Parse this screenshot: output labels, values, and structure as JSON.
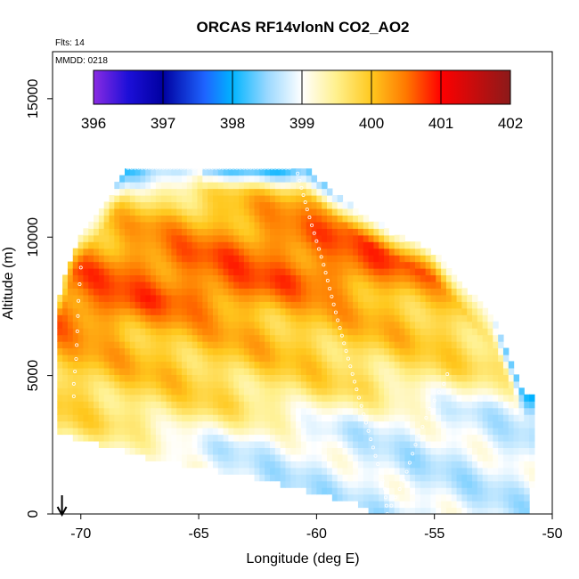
{
  "chart_data": {
    "type": "heatmap",
    "title": "ORCAS RF14vlonN CO2_AO2",
    "annotations": {
      "flights": "Flts: 14",
      "date": "MMDD: 0218"
    },
    "xlabel": "Longitude (deg E)",
    "ylabel": "Altitude (m)",
    "xlim": [
      -71.2,
      -50.0
    ],
    "ylim": [
      0,
      16700
    ],
    "xticks": [
      -70,
      -65,
      -60,
      -55,
      -50
    ],
    "xtick_labels": [
      "-70",
      "-65",
      "-60",
      "-55",
      "-50"
    ],
    "yticks": [
      0,
      5000,
      10000,
      15000
    ],
    "ytick_labels": [
      "0",
      "5000",
      "10000",
      "15000"
    ],
    "colorbar": {
      "min": 396,
      "max": 402,
      "ticks": [
        396,
        397,
        398,
        399,
        400,
        401,
        402
      ],
      "tick_labels": [
        "396",
        "397",
        "398",
        "399",
        "400",
        "401",
        "402"
      ],
      "colors": [
        {
          "v": 396.0,
          "c": "#8a2be2"
        },
        {
          "v": 396.5,
          "c": "#1c0fd8"
        },
        {
          "v": 397.0,
          "c": "#0000a0"
        },
        {
          "v": 397.6,
          "c": "#1e64ff"
        },
        {
          "v": 398.0,
          "c": "#00b4ff"
        },
        {
          "v": 398.5,
          "c": "#9ad8ff"
        },
        {
          "v": 399.0,
          "c": "#ffffff"
        },
        {
          "v": 399.5,
          "c": "#fff08c"
        },
        {
          "v": 400.0,
          "c": "#ffc81e"
        },
        {
          "v": 400.5,
          "c": "#ff7800"
        },
        {
          "v": 401.0,
          "c": "#ff0000"
        },
        {
          "v": 402.0,
          "c": "#8b1a1a"
        }
      ]
    },
    "domain": {
      "top_edge": [
        [
          -68.0,
          12500
        ],
        [
          -60.5,
          12500
        ],
        [
          -58.0,
          10800
        ],
        [
          -55.0,
          9400
        ],
        [
          -52.5,
          7100
        ],
        [
          -51.2,
          4300
        ]
      ],
      "left_edge": [
        [
          -68.0,
          12500
        ],
        [
          -70.3,
          9600
        ],
        [
          -71.0,
          7600
        ],
        [
          -71.0,
          2900
        ]
      ],
      "bottom_edge": [
        [
          -71.0,
          2900
        ],
        [
          -67.0,
          2000
        ],
        [
          -62.5,
          1300
        ],
        [
          -58.0,
          300
        ],
        [
          -57.5,
          0
        ],
        [
          -51.0,
          0
        ],
        [
          -50.8,
          1300
        ]
      ]
    },
    "field_profile": [
      {
        "alt": 0,
        "co2": 398.8
      },
      {
        "alt": 1500,
        "co2": 398.9
      },
      {
        "alt": 3000,
        "co2": 399.6
      },
      {
        "alt": 4500,
        "co2": 399.9
      },
      {
        "alt": 6000,
        "co2": 400.1
      },
      {
        "alt": 7200,
        "co2": 400.55
      },
      {
        "alt": 8600,
        "co2": 400.5
      },
      {
        "alt": 10000,
        "co2": 400.1
      },
      {
        "alt": 11200,
        "co2": 399.5
      },
      {
        "alt": 12500,
        "co2": 398.8
      }
    ],
    "flight_track": {
      "descent_near_coast": [
        [
          -70.0,
          8900
        ],
        [
          -70.1,
          7700
        ],
        [
          -70.15,
          6600
        ],
        [
          -70.2,
          5600
        ],
        [
          -70.3,
          4700
        ],
        [
          -70.3,
          3800
        ]
      ],
      "high_leg": [
        [
          -68.0,
          12500
        ],
        [
          -65.0,
          12500
        ],
        [
          -62.5,
          12500
        ],
        [
          -61.0,
          12500
        ]
      ],
      "dive": [
        [
          -60.8,
          12300
        ],
        [
          -60.4,
          11000
        ],
        [
          -59.7,
          9000
        ],
        [
          -59.1,
          7000
        ],
        [
          -58.3,
          4500
        ],
        [
          -57.7,
          2700
        ],
        [
          -57.1,
          900
        ],
        [
          -57.0,
          0
        ]
      ],
      "ascent": [
        [
          -57.0,
          0
        ],
        [
          -56.3,
          1200
        ],
        [
          -55.8,
          2500
        ],
        [
          -55.2,
          3800
        ],
        [
          -54.6,
          4700
        ],
        [
          -54.3,
          5400
        ]
      ]
    },
    "direction_marker": {
      "lon": -70.8,
      "symbol": "↓"
    }
  }
}
